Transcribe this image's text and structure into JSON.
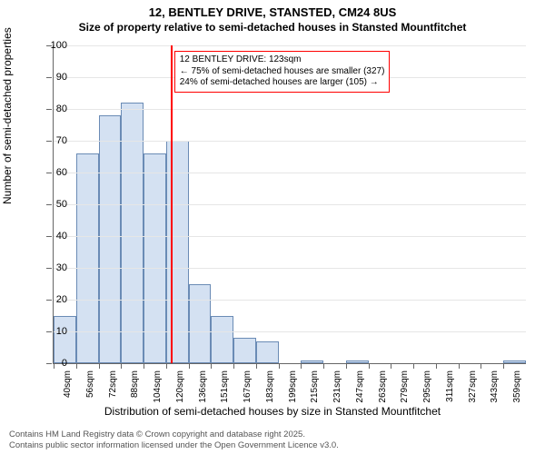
{
  "title_line1": "12, BENTLEY DRIVE, STANSTED, CM24 8US",
  "title_line2": "Size of property relative to semi-detached houses in Stansted Mountfitchet",
  "y_axis": {
    "label": "Number of semi-detached properties",
    "min": 0,
    "max": 100,
    "tick_step": 10
  },
  "x_axis": {
    "label": "Distribution of semi-detached houses by size in Stansted Mountfitchet"
  },
  "chart": {
    "type": "histogram",
    "categories": [
      "40sqm",
      "56sqm",
      "72sqm",
      "88sqm",
      "104sqm",
      "120sqm",
      "136sqm",
      "151sqm",
      "167sqm",
      "183sqm",
      "199sqm",
      "215sqm",
      "231sqm",
      "247sqm",
      "263sqm",
      "279sqm",
      "295sqm",
      "311sqm",
      "327sqm",
      "343sqm",
      "359sqm"
    ],
    "values": [
      15,
      66,
      78,
      82,
      66,
      70,
      25,
      15,
      8,
      7,
      0,
      1,
      0,
      1,
      0,
      0,
      0,
      0,
      0,
      0,
      1
    ],
    "bar_fill_color": "#d4e1f2",
    "bar_border_color": "#6a8bb5",
    "background_color": "#ffffff",
    "grid_color": "#e6e6e6",
    "axis_color": "#666666",
    "label_fontsize": 12,
    "tick_fontsize": 11
  },
  "marker": {
    "position_category_index": 5,
    "position_fraction_within": 0.2,
    "color": "#ff0000",
    "annotation_lines": [
      "12 BENTLEY DRIVE: 123sqm",
      "← 75% of semi-detached houses are smaller (327)",
      "24% of semi-detached houses are larger (105) →"
    ],
    "annotation_border_color": "#ff0000"
  },
  "footer_lines": [
    "Contains HM Land Registry data © Crown copyright and database right 2025.",
    "Contains public sector information licensed under the Open Government Licence v3.0."
  ]
}
